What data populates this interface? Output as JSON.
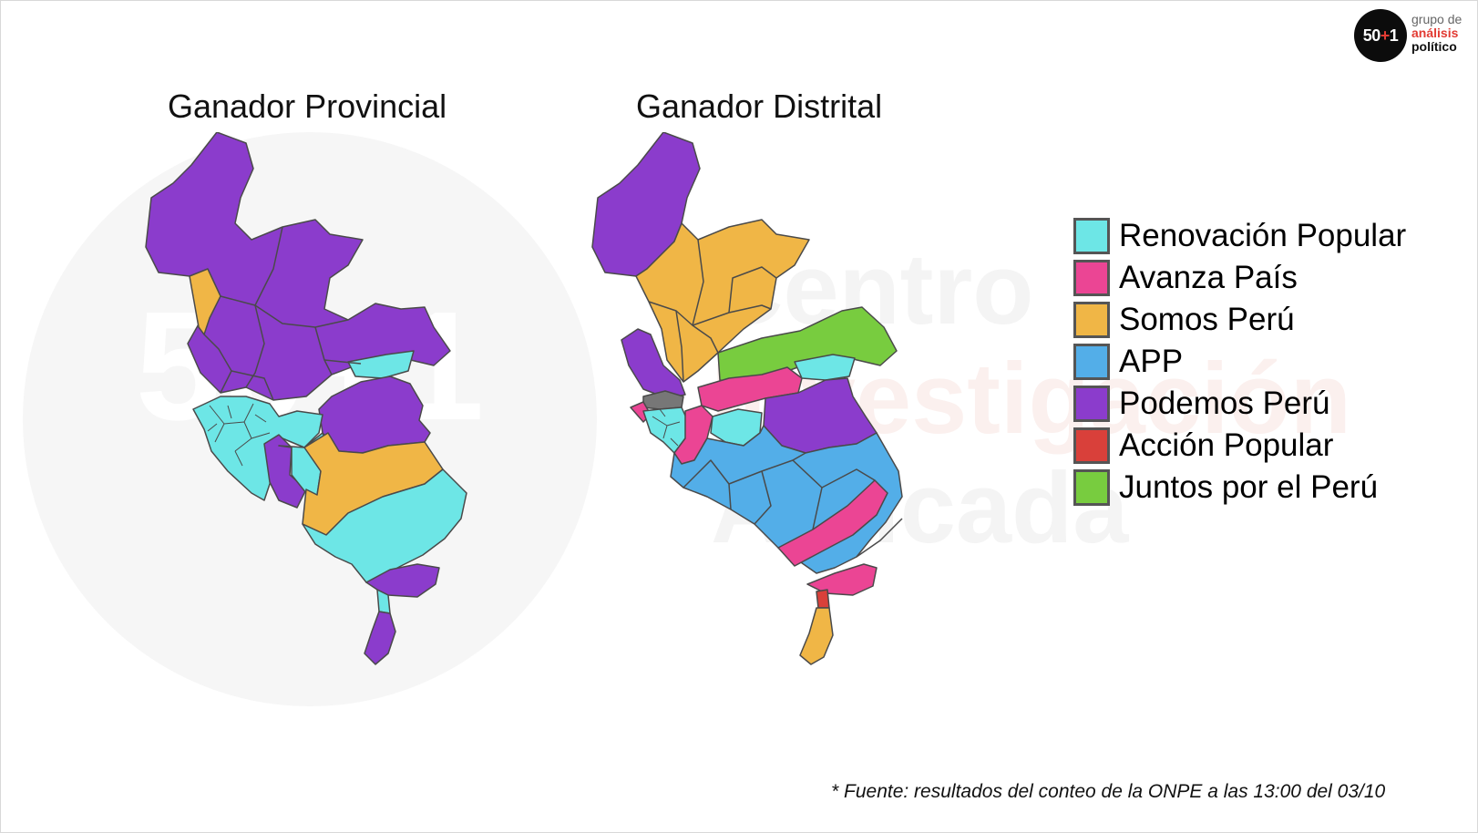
{
  "titles": {
    "left": "Ganador Provincial",
    "right": "Ganador Distrital"
  },
  "logo": {
    "badge_main": "50",
    "badge_plus": "+",
    "badge_tail": "1",
    "line1": "grupo de",
    "line2": "análisis",
    "line3": "político"
  },
  "watermark": {
    "circle_mark": "50+1",
    "line1": "Centro",
    "line2": "Investigación",
    "line3": "Aplicada"
  },
  "legend": [
    {
      "label": "Renovación Popular",
      "color": "#6de6e6"
    },
    {
      "label": "Avanza País",
      "color": "#eb4594"
    },
    {
      "label": "Somos Perú",
      "color": "#f0b646"
    },
    {
      "label": "APP",
      "color": "#53aee8"
    },
    {
      "label": "Podemos Perú",
      "color": "#8b3ccc"
    },
    {
      "label": "Acción Popular",
      "color": "#d9403a"
    },
    {
      "label": "Juntos por el Perú",
      "color": "#78cc3f"
    }
  ],
  "colors": {
    "region_stroke": "#4a4a4a",
    "gray_area": "#777777"
  },
  "source_note": "* Fuente: resultados del conteo de la ONPE a las 13:00 del 03/10"
}
